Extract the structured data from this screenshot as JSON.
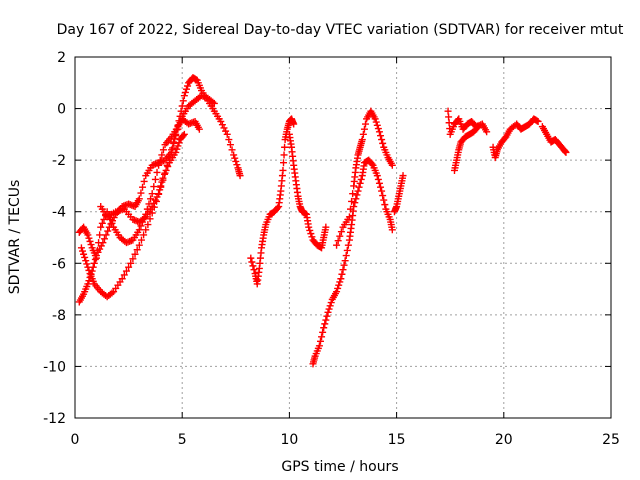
{
  "chart_data": {
    "type": "scatter",
    "title": "Day 167 of 2022, Sidereal Day-to-day VTEC variation (SDTVAR) for receiver mtut",
    "xlabel": "GPS time / hours",
    "ylabel": "SDTVAR / TECUs",
    "xlim": [
      0,
      25
    ],
    "ylim": [
      -12,
      2
    ],
    "xticks": [
      0,
      5,
      10,
      15,
      20,
      25
    ],
    "xtick_labels": [
      "0",
      "5",
      "10",
      "15",
      "20",
      "25"
    ],
    "yticks": [
      2,
      0,
      -2,
      -4,
      -6,
      -8,
      -10,
      -12
    ],
    "ytick_labels": [
      "2",
      "0",
      "-2",
      "-4",
      "-6",
      "-8",
      "-10",
      "-12"
    ],
    "grid": true,
    "marker": "+",
    "color": "#ff0000",
    "series": [
      {
        "name": "track-a",
        "points": [
          [
            0.2,
            -7.5
          ],
          [
            0.4,
            -7.2
          ],
          [
            0.6,
            -6.8
          ],
          [
            0.8,
            -6.3
          ],
          [
            1.0,
            -5.7
          ],
          [
            1.3,
            -5.2
          ],
          [
            1.6,
            -4.6
          ],
          [
            1.9,
            -4.1
          ],
          [
            2.2,
            -3.8
          ],
          [
            2.5,
            -3.7
          ],
          [
            2.8,
            -3.8
          ],
          [
            3.0,
            -3.5
          ],
          [
            3.3,
            -2.6
          ],
          [
            3.6,
            -2.2
          ],
          [
            3.9,
            -2.1
          ],
          [
            4.2,
            -2.0
          ],
          [
            4.5,
            -1.7
          ],
          [
            4.7,
            -1.0
          ],
          [
            4.9,
            -0.3
          ],
          [
            5.1,
            0.5
          ],
          [
            5.3,
            1.0
          ],
          [
            5.5,
            1.2
          ],
          [
            5.7,
            1.1
          ],
          [
            5.9,
            0.7
          ],
          [
            6.2,
            0.3
          ],
          [
            6.5,
            -0.1
          ],
          [
            6.8,
            -0.5
          ],
          [
            7.1,
            -1.0
          ],
          [
            7.4,
            -1.8
          ],
          [
            7.6,
            -2.3
          ],
          [
            7.7,
            -2.6
          ]
        ]
      },
      {
        "name": "track-b",
        "points": [
          [
            0.3,
            -5.4
          ],
          [
            0.5,
            -5.9
          ],
          [
            0.7,
            -6.4
          ],
          [
            0.9,
            -6.8
          ],
          [
            1.2,
            -7.1
          ],
          [
            1.5,
            -7.3
          ],
          [
            1.8,
            -7.1
          ],
          [
            2.2,
            -6.6
          ],
          [
            2.6,
            -6.0
          ],
          [
            3.0,
            -5.3
          ],
          [
            3.4,
            -4.5
          ],
          [
            3.8,
            -3.6
          ],
          [
            4.2,
            -2.5
          ],
          [
            4.6,
            -1.3
          ],
          [
            5.0,
            -0.3
          ],
          [
            5.3,
            0.1
          ],
          [
            5.6,
            0.3
          ],
          [
            5.9,
            0.5
          ],
          [
            6.2,
            0.4
          ],
          [
            6.5,
            0.2
          ]
        ]
      },
      {
        "name": "track-c",
        "points": [
          [
            0.2,
            -4.8
          ],
          [
            0.4,
            -4.6
          ],
          [
            0.6,
            -4.9
          ],
          [
            0.8,
            -5.4
          ],
          [
            1.0,
            -5.8
          ],
          [
            1.2,
            -4.6
          ],
          [
            1.5,
            -4.0
          ],
          [
            1.8,
            -4.6
          ],
          [
            2.1,
            -5.0
          ],
          [
            2.4,
            -5.2
          ],
          [
            2.7,
            -5.1
          ],
          [
            3.0,
            -4.7
          ],
          [
            3.3,
            -4.1
          ],
          [
            3.6,
            -3.3
          ],
          [
            3.9,
            -2.2
          ],
          [
            4.2,
            -1.4
          ],
          [
            4.5,
            -1.1
          ],
          [
            4.8,
            -0.7
          ],
          [
            5.0,
            -0.4
          ],
          [
            5.3,
            -0.6
          ],
          [
            5.6,
            -0.5
          ],
          [
            5.8,
            -0.8
          ]
        ]
      },
      {
        "name": "track-d",
        "points": [
          [
            1.2,
            -3.8
          ],
          [
            1.5,
            -4.2
          ],
          [
            1.9,
            -4.0
          ],
          [
            2.3,
            -3.9
          ],
          [
            2.7,
            -4.3
          ],
          [
            3.0,
            -4.4
          ],
          [
            3.3,
            -4.2
          ],
          [
            3.6,
            -3.8
          ],
          [
            3.9,
            -3.3
          ],
          [
            4.1,
            -2.7
          ],
          [
            4.4,
            -2.1
          ],
          [
            4.7,
            -1.7
          ],
          [
            4.9,
            -1.2
          ],
          [
            5.1,
            -1.0
          ]
        ]
      },
      {
        "name": "track-e",
        "points": [
          [
            8.2,
            -5.8
          ],
          [
            8.4,
            -6.4
          ],
          [
            8.5,
            -6.8
          ],
          [
            8.6,
            -6.2
          ],
          [
            8.7,
            -5.4
          ],
          [
            8.8,
            -4.9
          ],
          [
            8.9,
            -4.5
          ],
          [
            9.1,
            -4.1
          ],
          [
            9.3,
            -4.0
          ],
          [
            9.5,
            -3.8
          ],
          [
            9.6,
            -3.2
          ],
          [
            9.7,
            -2.4
          ],
          [
            9.8,
            -1.2
          ],
          [
            9.9,
            -0.8
          ],
          [
            10.0,
            -0.5
          ],
          [
            10.1,
            -0.4
          ],
          [
            10.2,
            -0.6
          ]
        ]
      },
      {
        "name": "track-f",
        "points": [
          [
            10.0,
            -1.0
          ],
          [
            10.1,
            -1.5
          ],
          [
            10.2,
            -2.2
          ],
          [
            10.3,
            -2.8
          ],
          [
            10.4,
            -3.4
          ],
          [
            10.5,
            -3.8
          ],
          [
            10.6,
            -4.0
          ],
          [
            10.8,
            -4.1
          ],
          [
            10.9,
            -4.6
          ],
          [
            11.1,
            -5.1
          ],
          [
            11.3,
            -5.3
          ],
          [
            11.5,
            -5.4
          ],
          [
            11.6,
            -5.0
          ],
          [
            11.7,
            -4.6
          ]
        ]
      },
      {
        "name": "track-g",
        "points": [
          [
            11.1,
            -9.9
          ],
          [
            11.2,
            -9.6
          ],
          [
            11.4,
            -9.2
          ],
          [
            11.6,
            -8.5
          ],
          [
            11.8,
            -7.9
          ],
          [
            12.0,
            -7.4
          ],
          [
            12.2,
            -7.1
          ],
          [
            12.4,
            -6.6
          ],
          [
            12.6,
            -5.9
          ],
          [
            12.8,
            -5.1
          ],
          [
            12.9,
            -4.5
          ],
          [
            13.0,
            -3.8
          ],
          [
            13.2,
            -3.2
          ],
          [
            13.4,
            -2.6
          ],
          [
            13.5,
            -2.1
          ],
          [
            13.7,
            -2.0
          ],
          [
            13.9,
            -2.2
          ],
          [
            14.1,
            -2.6
          ],
          [
            14.3,
            -3.2
          ],
          [
            14.5,
            -3.9
          ],
          [
            14.7,
            -4.3
          ],
          [
            14.8,
            -4.7
          ]
        ]
      },
      {
        "name": "track-h",
        "points": [
          [
            12.2,
            -5.3
          ],
          [
            12.5,
            -4.6
          ],
          [
            12.8,
            -4.2
          ],
          [
            13.0,
            -3.0
          ],
          [
            13.1,
            -2.3
          ],
          [
            13.2,
            -1.8
          ],
          [
            13.3,
            -1.5
          ],
          [
            13.4,
            -1.2
          ],
          [
            13.6,
            -0.4
          ],
          [
            13.8,
            -0.1
          ],
          [
            14.0,
            -0.4
          ],
          [
            14.2,
            -0.9
          ],
          [
            14.4,
            -1.5
          ],
          [
            14.6,
            -1.9
          ],
          [
            14.8,
            -2.2
          ]
        ]
      },
      {
        "name": "track-i",
        "points": [
          [
            14.9,
            -4.0
          ],
          [
            15.0,
            -3.8
          ],
          [
            15.1,
            -3.4
          ],
          [
            15.2,
            -3.0
          ],
          [
            15.3,
            -2.6
          ]
        ]
      },
      {
        "name": "track-j",
        "points": [
          [
            17.4,
            -0.1
          ],
          [
            17.5,
            -1.0
          ],
          [
            17.7,
            -0.6
          ],
          [
            17.9,
            -0.4
          ],
          [
            18.1,
            -0.8
          ],
          [
            18.3,
            -0.6
          ],
          [
            18.5,
            -0.5
          ],
          [
            18.7,
            -0.7
          ],
          [
            19.0,
            -0.6
          ],
          [
            19.2,
            -0.9
          ]
        ]
      },
      {
        "name": "track-k",
        "points": [
          [
            17.7,
            -2.4
          ],
          [
            17.8,
            -2.0
          ],
          [
            17.9,
            -1.6
          ],
          [
            18.0,
            -1.3
          ],
          [
            18.2,
            -1.1
          ],
          [
            18.4,
            -1.0
          ],
          [
            18.6,
            -0.9
          ],
          [
            18.8,
            -0.7
          ]
        ]
      },
      {
        "name": "track-l",
        "points": [
          [
            19.5,
            -1.5
          ],
          [
            19.6,
            -1.9
          ],
          [
            19.7,
            -1.6
          ],
          [
            19.9,
            -1.3
          ],
          [
            20.1,
            -1.1
          ],
          [
            20.3,
            -0.8
          ],
          [
            20.6,
            -0.6
          ],
          [
            20.8,
            -0.8
          ],
          [
            21.0,
            -0.7
          ],
          [
            21.2,
            -0.6
          ],
          [
            21.4,
            -0.4
          ],
          [
            21.6,
            -0.5
          ]
        ]
      },
      {
        "name": "track-m",
        "points": [
          [
            21.8,
            -0.7
          ],
          [
            22.0,
            -1.0
          ],
          [
            22.2,
            -1.3
          ],
          [
            22.4,
            -1.2
          ],
          [
            22.6,
            -1.4
          ],
          [
            22.8,
            -1.6
          ],
          [
            22.9,
            -1.7
          ]
        ]
      }
    ]
  }
}
